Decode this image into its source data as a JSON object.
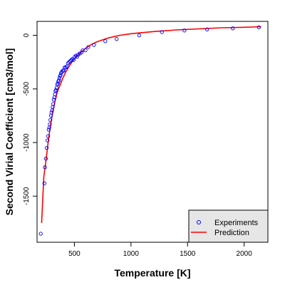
{
  "chart_data": {
    "type": "scatter",
    "title": "",
    "xlabel": "Temperature [K]",
    "ylabel": "Second Virial Coefficient [cm3/mol]",
    "xlim": [
      170,
      2210
    ],
    "ylim": [
      -1930,
      130
    ],
    "xticks": [
      500,
      1000,
      1500,
      2000
    ],
    "yticks": [
      0,
      -500,
      -1000,
      -1500
    ],
    "grid": false,
    "legend_position": "bottom-right",
    "series": [
      {
        "name": "Experiments",
        "kind": "points",
        "color": "#0000ff",
        "x": [
          203,
          235,
          240,
          248,
          255,
          262,
          268,
          273,
          278,
          283,
          288,
          293,
          298,
          303,
          308,
          313,
          318,
          323,
          328,
          333,
          338,
          343,
          348,
          353,
          358,
          363,
          368,
          373,
          378,
          383,
          390,
          398,
          405,
          413,
          423,
          433,
          443,
          453,
          463,
          473,
          483,
          493,
          503,
          513,
          523,
          533,
          548,
          563,
          573,
          598,
          623,
          673,
          773,
          873,
          1073,
          1273,
          1473,
          1673,
          1900,
          2130
        ],
        "y": [
          -1850,
          -1380,
          -1230,
          -1150,
          -1050,
          -980,
          -940,
          -880,
          -860,
          -830,
          -790,
          -750,
          -720,
          -700,
          -670,
          -640,
          -600,
          -580,
          -550,
          -520,
          -510,
          -490,
          -460,
          -450,
          -430,
          -420,
          -400,
          -380,
          -370,
          -350,
          -340,
          -330,
          -330,
          -300,
          -300,
          -290,
          -260,
          -250,
          -240,
          -230,
          -220,
          -230,
          -200,
          -190,
          -200,
          -180,
          -170,
          -160,
          -140,
          -140,
          -110,
          -90,
          -55,
          -35,
          0,
          30,
          45,
          55,
          65,
          75
        ]
      },
      {
        "name": "Prediction",
        "kind": "line",
        "color": "#ff0000",
        "x": [
          210,
          230,
          250,
          270,
          290,
          310,
          330,
          350,
          375,
          400,
          425,
          450,
          475,
          500,
          550,
          600,
          650,
          700,
          800,
          900,
          1000,
          1200,
          1400,
          1600,
          1800,
          2000,
          2150
        ],
        "y": [
          -1750,
          -1320,
          -1160,
          -980,
          -830,
          -710,
          -610,
          -525,
          -460,
          -395,
          -340,
          -295,
          -255,
          -220,
          -165,
          -120,
          -85,
          -60,
          -25,
          0,
          15,
          35,
          50,
          60,
          70,
          75,
          80
        ]
      }
    ]
  }
}
